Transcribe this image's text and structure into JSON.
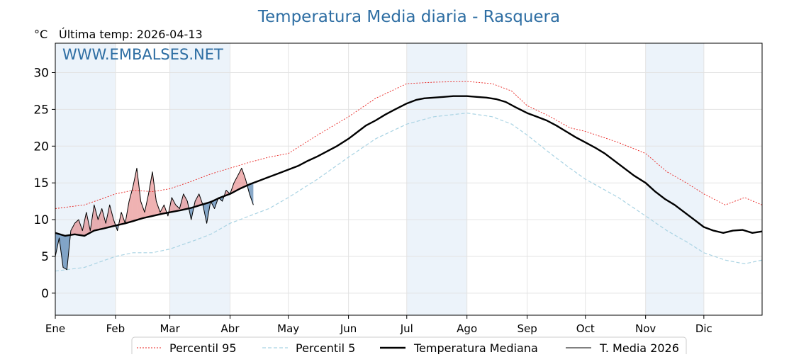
{
  "chart_data": {
    "type": "line",
    "title": "Temperatura Media diaria - Rasquera",
    "unit_label": "°C",
    "last_update": "Última temp: 2026-04-13",
    "watermark": "WWW.EMBALSES.NET",
    "ylim": [
      -3,
      34
    ],
    "yticks": [
      0,
      5,
      10,
      15,
      20,
      25,
      30
    ],
    "months": [
      "Ene",
      "Feb",
      "Mar",
      "Abr",
      "May",
      "Jun",
      "Jul",
      "Ago",
      "Sep",
      "Oct",
      "Nov",
      "Dic"
    ],
    "month_start_day": [
      0,
      31,
      59,
      90,
      120,
      151,
      181,
      212,
      243,
      273,
      304,
      334
    ],
    "days_in_year": 365,
    "grid": true,
    "colors": {
      "p95": "#e8221f",
      "p5": "#a9d3e3",
      "median": "#000000",
      "current": "#000000",
      "above_fill": "#e06666",
      "below_fill": "#3b6fa5",
      "band_fill": "#dde9f5",
      "title": "#2e6ea3"
    },
    "legend": [
      {
        "key": "p95",
        "label": "Percentil 95"
      },
      {
        "key": "p5",
        "label": "Percentil 5"
      },
      {
        "key": "median",
        "label": "Temperatura Mediana"
      },
      {
        "key": "current",
        "label": "T. Media 2026"
      }
    ],
    "series": {
      "p95": {
        "name": "Percentil 95",
        "x": [
          0,
          15,
          31,
          40,
          50,
          59,
          70,
          80,
          90,
          100,
          110,
          120,
          135,
          151,
          165,
          181,
          195,
          212,
          225,
          235,
          243,
          255,
          265,
          273,
          290,
          304,
          315,
          325,
          334,
          345,
          355,
          364
        ],
        "y": [
          11.5,
          12.0,
          13.5,
          14.0,
          13.8,
          14.2,
          15.2,
          16.2,
          17.0,
          17.8,
          18.5,
          19.0,
          21.5,
          24.0,
          26.5,
          28.5,
          28.7,
          28.8,
          28.5,
          27.5,
          25.5,
          24.0,
          22.5,
          22.0,
          20.5,
          19.0,
          16.5,
          15.0,
          13.5,
          12.0,
          13.0,
          12.0
        ]
      },
      "p5": {
        "name": "Percentil 5",
        "x": [
          0,
          15,
          31,
          40,
          50,
          59,
          70,
          80,
          90,
          100,
          110,
          120,
          135,
          151,
          165,
          181,
          195,
          212,
          225,
          235,
          243,
          255,
          265,
          273,
          290,
          304,
          315,
          325,
          334,
          345,
          355,
          364
        ],
        "y": [
          3.0,
          3.5,
          5.0,
          5.5,
          5.5,
          6.0,
          7.0,
          8.0,
          9.5,
          10.5,
          11.5,
          13.0,
          15.5,
          18.5,
          21.0,
          23.0,
          24.0,
          24.5,
          24.0,
          23.0,
          21.5,
          19.0,
          17.0,
          15.5,
          13.0,
          10.5,
          8.5,
          7.0,
          5.5,
          4.5,
          4.0,
          4.5
        ]
      },
      "median": {
        "name": "Temperatura Mediana",
        "x": [
          0,
          5,
          10,
          15,
          20,
          25,
          31,
          36,
          40,
          45,
          50,
          55,
          59,
          65,
          70,
          75,
          80,
          85,
          90,
          95,
          100,
          105,
          110,
          115,
          120,
          125,
          130,
          135,
          140,
          145,
          151,
          156,
          160,
          165,
          170,
          175,
          181,
          186,
          190,
          195,
          200,
          205,
          212,
          217,
          222,
          227,
          232,
          237,
          243,
          248,
          253,
          258,
          263,
          268,
          273,
          278,
          283,
          288,
          293,
          298,
          304,
          309,
          314,
          319,
          324,
          329,
          334,
          339,
          344,
          349,
          354,
          359,
          364
        ],
        "y": [
          8.2,
          7.8,
          8.0,
          7.8,
          8.5,
          8.8,
          9.2,
          9.5,
          9.8,
          10.2,
          10.5,
          10.8,
          11.0,
          11.3,
          11.6,
          12.0,
          12.4,
          13.0,
          13.5,
          14.2,
          14.8,
          15.3,
          15.8,
          16.3,
          16.8,
          17.3,
          18.0,
          18.6,
          19.3,
          20.0,
          21.0,
          22.0,
          22.8,
          23.5,
          24.3,
          25.0,
          25.8,
          26.3,
          26.5,
          26.6,
          26.7,
          26.8,
          26.8,
          26.7,
          26.6,
          26.4,
          26.0,
          25.3,
          24.5,
          24.0,
          23.5,
          22.8,
          22.0,
          21.2,
          20.5,
          19.8,
          19.0,
          18.0,
          17.0,
          16.0,
          15.0,
          13.8,
          12.8,
          12.0,
          11.0,
          10.0,
          9.0,
          8.5,
          8.2,
          8.5,
          8.6,
          8.2,
          8.4
        ]
      },
      "current": {
        "name": "T. Media 2026",
        "x": [
          0,
          2,
          4,
          6,
          8,
          10,
          12,
          14,
          16,
          18,
          20,
          22,
          24,
          26,
          28,
          30,
          32,
          34,
          36,
          38,
          40,
          42,
          44,
          46,
          48,
          50,
          52,
          54,
          56,
          58,
          60,
          62,
          64,
          66,
          68,
          70,
          72,
          74,
          76,
          78,
          80,
          82,
          84,
          86,
          88,
          90,
          92,
          94,
          96,
          98,
          100,
          102
        ],
        "y": [
          5.0,
          7.5,
          3.5,
          3.2,
          8.5,
          9.5,
          10.0,
          8.5,
          11.0,
          8.5,
          12.0,
          10.0,
          11.5,
          9.5,
          12.0,
          10.0,
          8.5,
          11.0,
          9.5,
          12.5,
          14.5,
          17.0,
          12.5,
          11.0,
          13.5,
          16.5,
          12.5,
          11.0,
          12.0,
          10.5,
          13.0,
          12.0,
          11.5,
          13.5,
          12.5,
          10.0,
          12.5,
          13.5,
          12.0,
          9.5,
          12.5,
          11.5,
          13.0,
          12.5,
          14.0,
          13.5,
          15.0,
          16.0,
          17.0,
          15.5,
          13.5,
          12.0
        ]
      }
    }
  }
}
